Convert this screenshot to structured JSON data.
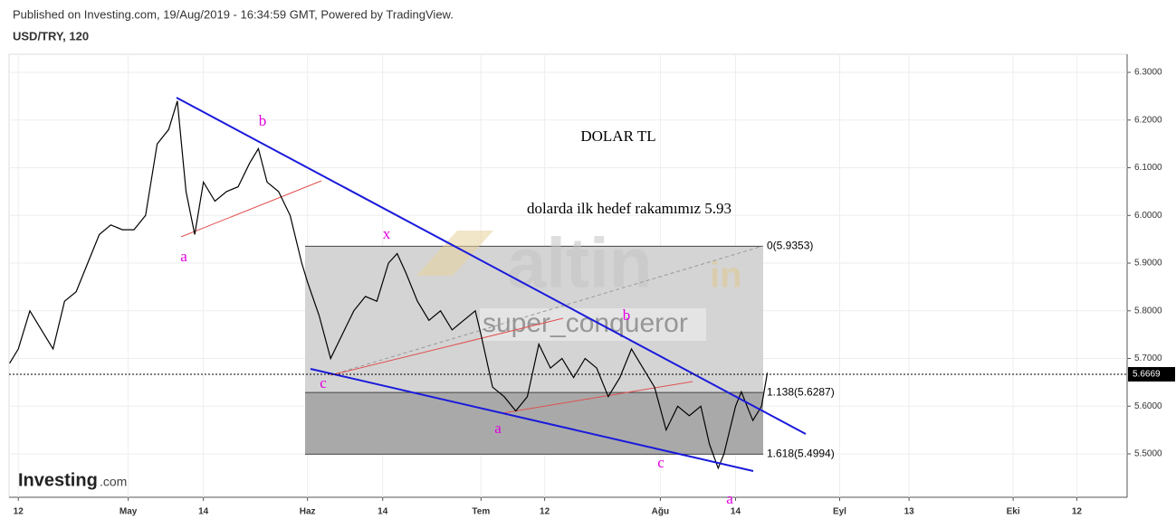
{
  "chart_data": {
    "type": "line",
    "subtitle": "Published on Investing.com, 19/Aug/2019 - 16:34:59 GMT, Powered by TradingView.",
    "title": "USD/TRY, 120",
    "x": [
      -1.5,
      0,
      2,
      4,
      6,
      8,
      10,
      12,
      14,
      16,
      18,
      20,
      22,
      24,
      26,
      27.5,
      29,
      30.5,
      32,
      34,
      36,
      38,
      40,
      41.5,
      43,
      45,
      47,
      49,
      50,
      52,
      54,
      56,
      58,
      60,
      62,
      64,
      65.5,
      67,
      69,
      71,
      73,
      75,
      77,
      79,
      80,
      82,
      84,
      86,
      88,
      90,
      92,
      94,
      96,
      98,
      100,
      102,
      104,
      106,
      108,
      110,
      112,
      114,
      116,
      118,
      119.5,
      121,
      122,
      123,
      124,
      125,
      126,
      127,
      128.5,
      129.5
    ],
    "values": [
      5.69,
      5.72,
      5.8,
      5.76,
      5.72,
      5.82,
      5.84,
      5.9,
      5.96,
      5.98,
      5.97,
      5.97,
      6.0,
      6.15,
      6.18,
      6.24,
      6.05,
      5.96,
      6.07,
      6.03,
      6.05,
      6.06,
      6.11,
      6.14,
      6.07,
      6.05,
      6.0,
      5.9,
      5.86,
      5.79,
      5.7,
      5.75,
      5.8,
      5.83,
      5.82,
      5.9,
      5.92,
      5.88,
      5.82,
      5.78,
      5.8,
      5.76,
      5.78,
      5.8,
      5.75,
      5.64,
      5.62,
      5.59,
      5.62,
      5.73,
      5.68,
      5.7,
      5.66,
      5.7,
      5.68,
      5.62,
      5.66,
      5.72,
      5.68,
      5.64,
      5.55,
      5.6,
      5.58,
      5.6,
      5.52,
      5.47,
      5.5,
      5.55,
      5.6,
      5.63,
      5.6,
      5.57,
      5.6,
      5.67
    ],
    "color": "#000000",
    "xlim": [
      -1.6,
      191.7
    ],
    "xticks": [
      {
        "value": 0,
        "label": "12"
      },
      {
        "value": 19,
        "label": "May"
      },
      {
        "value": 32,
        "label": "14"
      },
      {
        "value": 50,
        "label": "Haz"
      },
      {
        "value": 63,
        "label": "14"
      },
      {
        "value": 80,
        "label": "Tem"
      },
      {
        "value": 91,
        "label": "12"
      },
      {
        "value": 111,
        "label": "Ağu"
      },
      {
        "value": 124,
        "label": "14"
      },
      {
        "value": 142,
        "label": "Eyl"
      },
      {
        "value": 154,
        "label": "13"
      },
      {
        "value": 172,
        "label": "Eki"
      },
      {
        "value": 183,
        "label": "12"
      }
    ],
    "ylim": [
      5.409,
      6.338
    ],
    "yticks": [
      {
        "value": 5.5,
        "label": "5.5000"
      },
      {
        "value": 5.6,
        "label": "5.6000"
      },
      {
        "value": 5.7,
        "label": "5.7000"
      },
      {
        "value": 5.8,
        "label": "5.8000"
      },
      {
        "value": 5.9,
        "label": "5.9000"
      },
      {
        "value": 6.0,
        "label": "6.0000"
      },
      {
        "value": 6.1,
        "label": "6.1000"
      },
      {
        "value": 6.2,
        "label": "6.2000"
      },
      {
        "value": 6.3,
        "label": "6.3000"
      }
    ],
    "grid": true,
    "last_price": {
      "value": 5.6669,
      "label": "5.6669"
    },
    "fib_levels": [
      {
        "value": 5.9353,
        "label": "0(5.9353)"
      },
      {
        "value": 5.6287,
        "label": "1.138(5.6287)"
      },
      {
        "value": 5.4994,
        "label": "1.618(5.4994)"
      }
    ],
    "annotations": [
      "DOLAR TL",
      "dolarda ilk hedef rakamımız 5.93",
      "a",
      "b",
      "c",
      "x",
      "b",
      "a",
      "c",
      "a"
    ],
    "watermarks": [
      "altin",
      "in",
      "super_conqueror",
      "Investing",
      ".com"
    ]
  }
}
